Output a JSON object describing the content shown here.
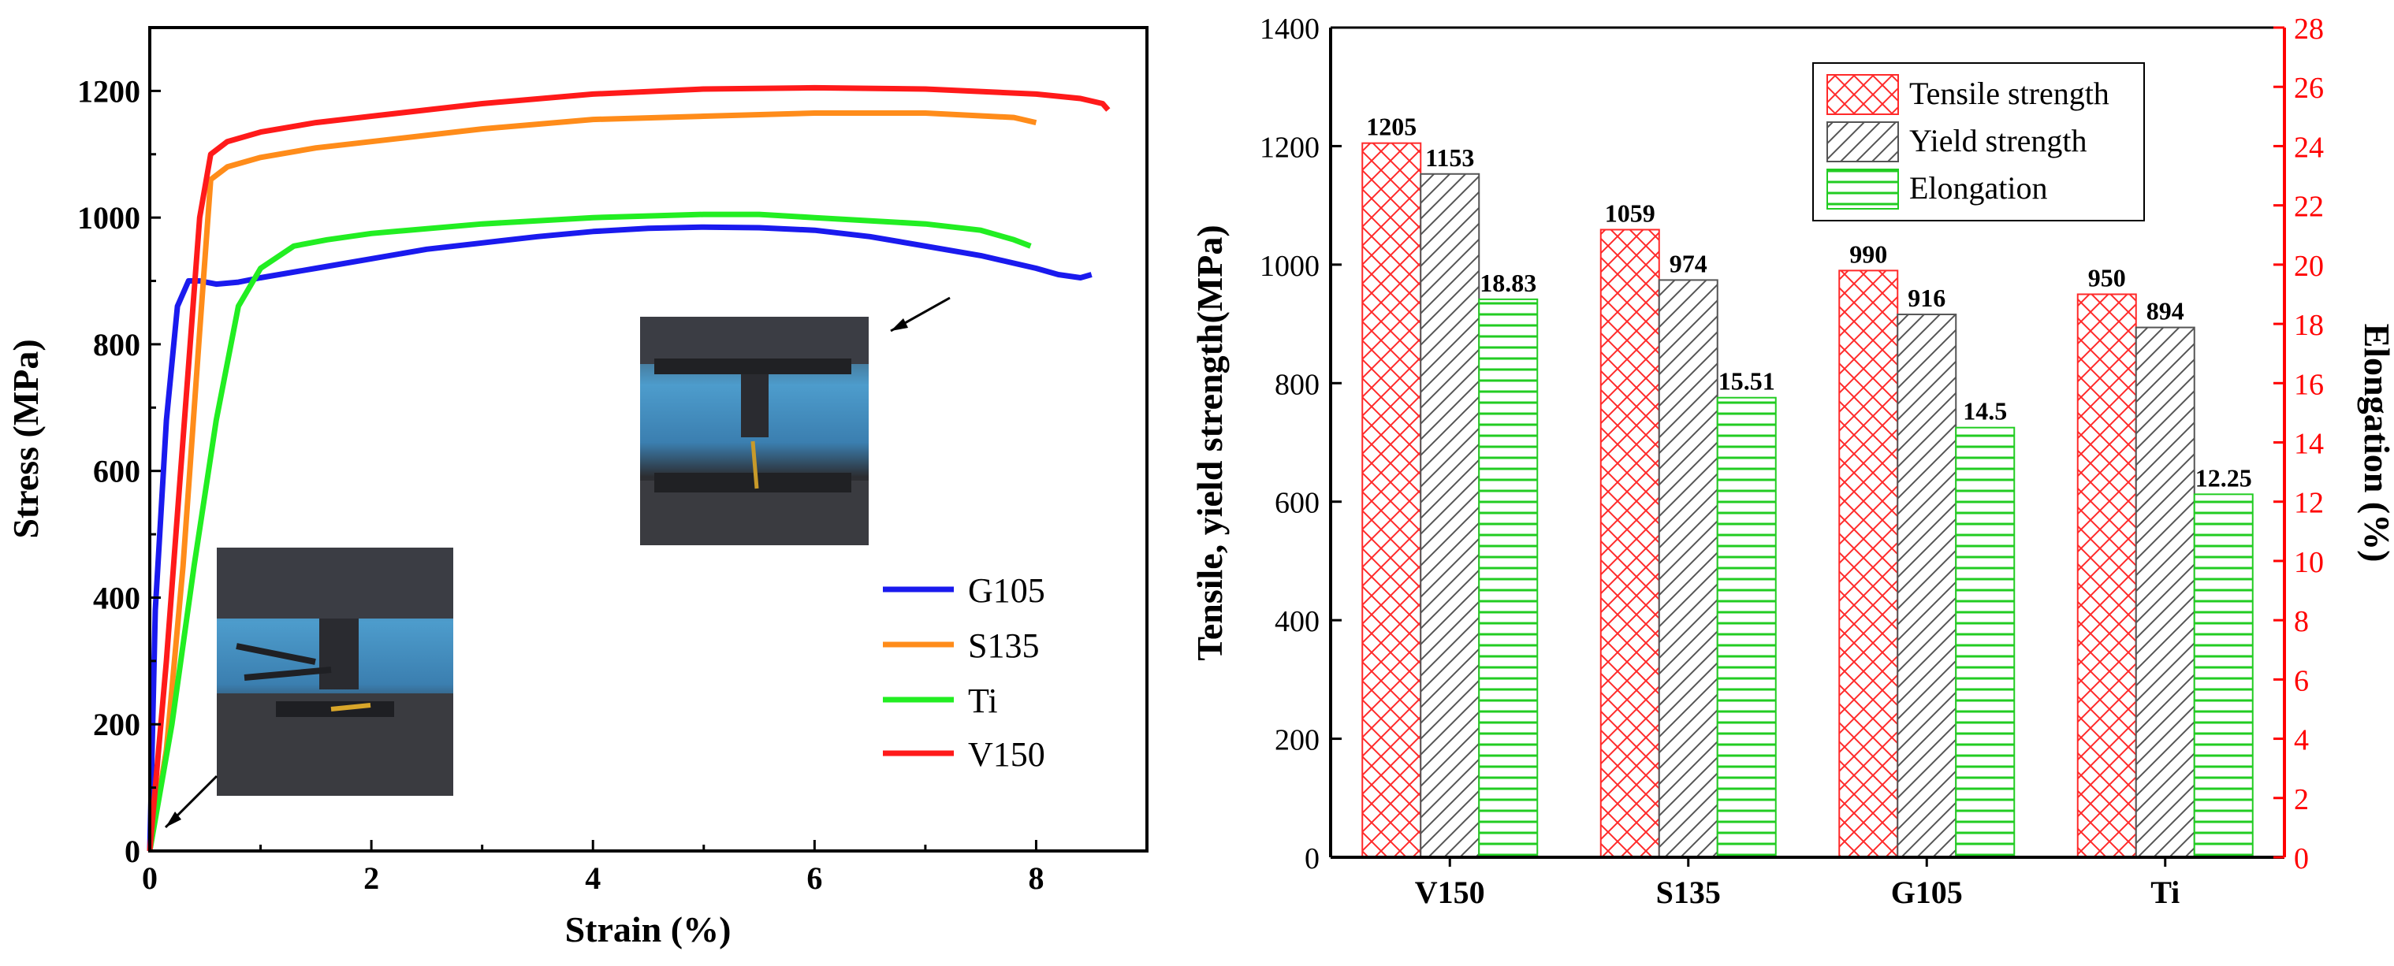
{
  "colors": {
    "axis": "#000000",
    "g105": "#1a1aee",
    "s135": "#ff8c1a",
    "ti": "#22ee22",
    "v150": "#ff1a1a",
    "right_axis": "#ff0000",
    "tensile_pattern": "#ff2a2a",
    "yield_pattern": "#555555",
    "elong_pattern": "#22cc22"
  },
  "icons": {
    "left_photo": "tensile-specimen-before-test-photo",
    "right_photo": "tensile-specimen-after-fracture-photo"
  },
  "chart_data": [
    {
      "type": "line",
      "title": "",
      "xlabel": "Strain (%)",
      "ylabel": "Stress (MPa)",
      "xlim": [
        0,
        9
      ],
      "ylim": [
        0,
        1300
      ],
      "xticks": [
        0,
        2,
        4,
        6,
        8
      ],
      "yticks": [
        0,
        200,
        400,
        600,
        800,
        1000,
        1200
      ],
      "legend_position": "bottom-right",
      "series": [
        {
          "name": "G105",
          "color_key": "g105",
          "x": [
            0,
            0.05,
            0.15,
            0.25,
            0.35,
            0.45,
            0.6,
            0.8,
            1.0,
            1.5,
            2.0,
            2.5,
            3.0,
            3.5,
            4.0,
            4.5,
            5.0,
            5.5,
            6.0,
            6.5,
            7.0,
            7.5,
            8.0,
            8.2,
            8.4,
            8.5
          ],
          "y": [
            0,
            380,
            680,
            860,
            900,
            900,
            895,
            898,
            905,
            920,
            935,
            950,
            960,
            970,
            978,
            983,
            985,
            984,
            980,
            970,
            955,
            940,
            920,
            910,
            905,
            910
          ]
        },
        {
          "name": "S135",
          "color_key": "s135",
          "x": [
            0,
            0.15,
            0.3,
            0.45,
            0.55,
            0.7,
            1.0,
            1.5,
            2.0,
            3.0,
            4.0,
            5.0,
            6.0,
            7.0,
            7.8,
            8.0
          ],
          "y": [
            0,
            160,
            450,
            820,
            1060,
            1080,
            1095,
            1110,
            1120,
            1140,
            1155,
            1160,
            1165,
            1165,
            1158,
            1150
          ]
        },
        {
          "name": "Ti",
          "color_key": "ti",
          "x": [
            0,
            0.2,
            0.4,
            0.6,
            0.8,
            1.0,
            1.3,
            1.6,
            2.0,
            3.0,
            4.0,
            5.0,
            5.5,
            6.0,
            7.0,
            7.5,
            7.8,
            7.95
          ],
          "y": [
            0,
            200,
            450,
            680,
            860,
            920,
            955,
            965,
            975,
            990,
            1000,
            1005,
            1005,
            1000,
            990,
            980,
            965,
            955
          ]
        },
        {
          "name": "V150",
          "color_key": "v150",
          "x": [
            0,
            0.15,
            0.3,
            0.45,
            0.55,
            0.7,
            1.0,
            1.5,
            2.0,
            3.0,
            4.0,
            5.0,
            6.0,
            7.0,
            8.0,
            8.4,
            8.6,
            8.65
          ],
          "y": [
            0,
            300,
            650,
            1000,
            1100,
            1120,
            1135,
            1150,
            1160,
            1180,
            1195,
            1203,
            1205,
            1203,
            1195,
            1188,
            1180,
            1170
          ]
        }
      ]
    },
    {
      "type": "bar",
      "title": "",
      "xlabel": "",
      "ylabel": "Tensile, yield strength(MPa)",
      "y2label": "Elongation (%)",
      "categories": [
        "V150",
        "S135",
        "G105",
        "Ti"
      ],
      "ylim": [
        0,
        1400
      ],
      "y2lim": [
        0,
        28
      ],
      "yticks": [
        0,
        200,
        400,
        600,
        800,
        1000,
        1200,
        1400
      ],
      "y2ticks": [
        0,
        2,
        4,
        6,
        8,
        10,
        12,
        14,
        16,
        18,
        20,
        22,
        24,
        26,
        28
      ],
      "legend_position": "top-right",
      "series": [
        {
          "name": "Tensile strength",
          "axis": "left",
          "pattern": "crosshatch",
          "color_key": "tensile_pattern",
          "values": [
            1205,
            1059,
            990,
            950
          ],
          "labels": [
            "1205",
            "1059",
            "990",
            "950"
          ]
        },
        {
          "name": "Yield strength",
          "axis": "left",
          "pattern": "diagonal",
          "color_key": "yield_pattern",
          "values": [
            1153,
            974,
            916,
            894
          ],
          "labels": [
            "1153",
            "974",
            "916",
            "894"
          ]
        },
        {
          "name": "Elongation",
          "axis": "right",
          "pattern": "horizontal",
          "color_key": "elong_pattern",
          "values": [
            18.83,
            15.51,
            14.5,
            12.25
          ],
          "labels": [
            "18.83",
            "15.51",
            "14.5",
            "12.25"
          ]
        }
      ]
    }
  ]
}
